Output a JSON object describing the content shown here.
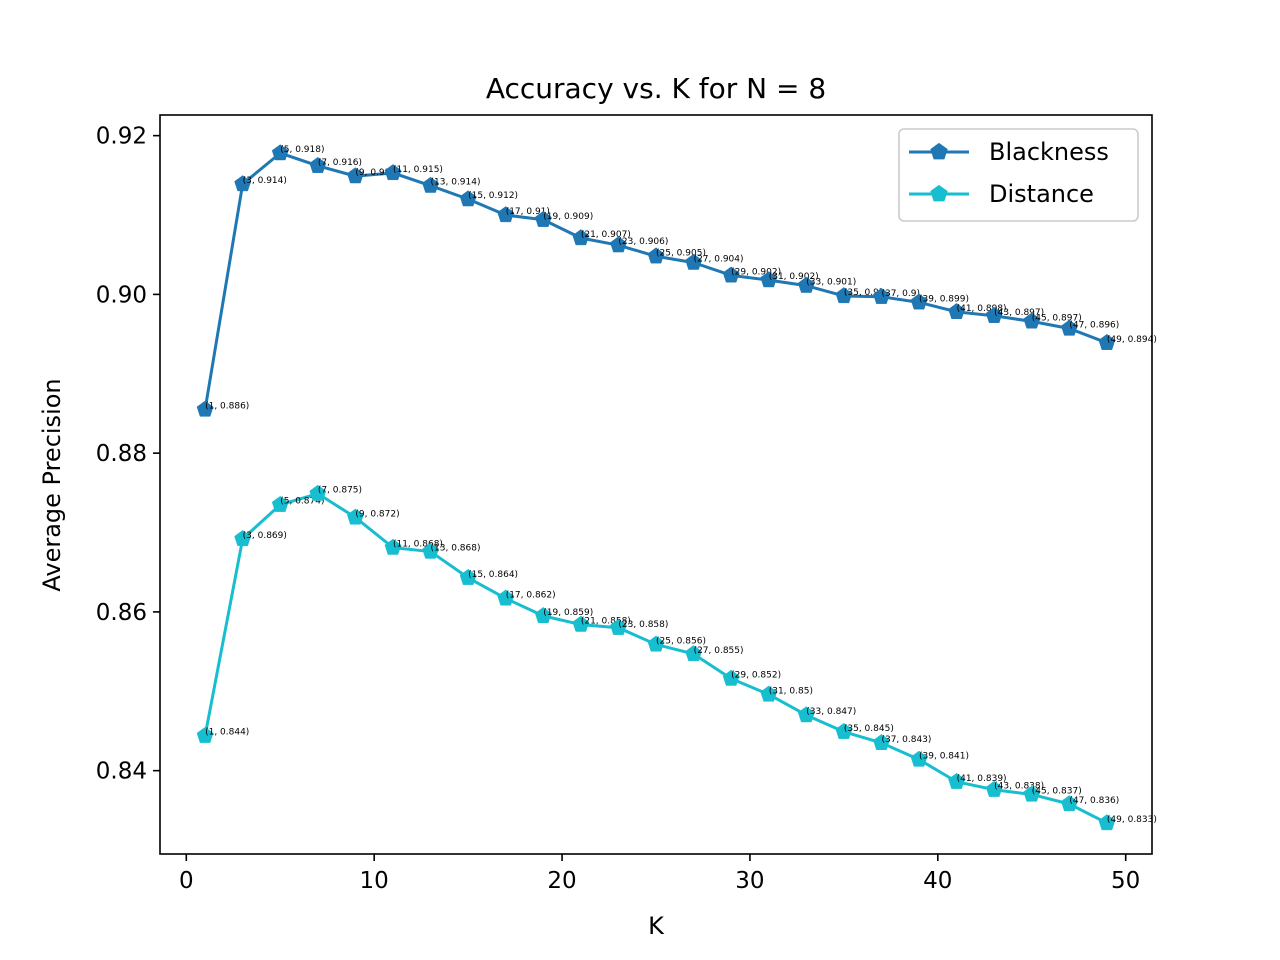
{
  "chart_data": {
    "type": "line",
    "title": "Accuracy vs. K for N = 8",
    "xlabel": "K",
    "ylabel": "Average Precision",
    "xlim": [
      -1.4,
      51.4
    ],
    "ylim": [
      0.8295,
      0.9226
    ],
    "xticks": [
      0,
      10,
      20,
      30,
      40,
      50
    ],
    "xtick_labels": [
      "0",
      "10",
      "20",
      "30",
      "40",
      "50"
    ],
    "yticks": [
      0.84,
      0.86,
      0.88,
      0.9,
      0.92
    ],
    "ytick_labels": [
      "0.84",
      "0.86",
      "0.88",
      "0.90",
      "0.92"
    ],
    "grid": false,
    "legend_position": "top-right",
    "x": [
      1,
      3,
      5,
      7,
      9,
      11,
      13,
      15,
      17,
      19,
      21,
      23,
      25,
      27,
      29,
      31,
      33,
      35,
      37,
      39,
      41,
      43,
      45,
      47,
      49
    ],
    "series": [
      {
        "name": "Blackness",
        "color": "#1f77b4",
        "marker": "pentagon",
        "values": [
          0.8855,
          0.9139,
          0.9178,
          0.9162,
          0.9149,
          0.9153,
          0.9137,
          0.912,
          0.91,
          0.9094,
          0.9071,
          0.9062,
          0.9048,
          0.904,
          0.9024,
          0.9018,
          0.9011,
          0.8998,
          0.8997,
          0.899,
          0.8978,
          0.8973,
          0.8966,
          0.8957,
          0.8939
        ],
        "labels": [
          "(1, 0.886)",
          "(3, 0.914)",
          "(5, 0.918)",
          "(7, 0.916)",
          "(9, 0.915)",
          "(11, 0.915)",
          "(13, 0.914)",
          "(15, 0.912)",
          "(17, 0.91)",
          "(19, 0.909)",
          "(21, 0.907)",
          "(23, 0.906)",
          "(25, 0.905)",
          "(27, 0.904)",
          "(29, 0.902)",
          "(31, 0.902)",
          "(33, 0.901)",
          "(35, 0.9)",
          "(37, 0.9)",
          "(39, 0.899)",
          "(41, 0.898)",
          "(43, 0.897)",
          "(45, 0.897)",
          "(47, 0.896)",
          "(49, 0.894)"
        ]
      },
      {
        "name": "Distance",
        "color": "#17becf",
        "marker": "pentagon",
        "values": [
          0.8444,
          0.8692,
          0.8735,
          0.8749,
          0.8719,
          0.8681,
          0.8676,
          0.8643,
          0.8617,
          0.8595,
          0.8584,
          0.858,
          0.8559,
          0.8547,
          0.8516,
          0.8496,
          0.847,
          0.8449,
          0.8435,
          0.8414,
          0.8386,
          0.8376,
          0.837,
          0.8358,
          0.8334
        ],
        "labels": [
          "(1, 0.844)",
          "(3, 0.869)",
          "(5, 0.874)",
          "(7, 0.875)",
          "(9, 0.872)",
          "(11, 0.868)",
          "(13, 0.868)",
          "(15, 0.864)",
          "(17, 0.862)",
          "(19, 0.859)",
          "(21, 0.858)",
          "(23, 0.858)",
          "(25, 0.856)",
          "(27, 0.855)",
          "(29, 0.852)",
          "(31, 0.85)",
          "(33, 0.847)",
          "(35, 0.845)",
          "(37, 0.843)",
          "(39, 0.841)",
          "(41, 0.839)",
          "(43, 0.838)",
          "(45, 0.837)",
          "(47, 0.836)",
          "(49, 0.833)"
        ]
      }
    ]
  }
}
